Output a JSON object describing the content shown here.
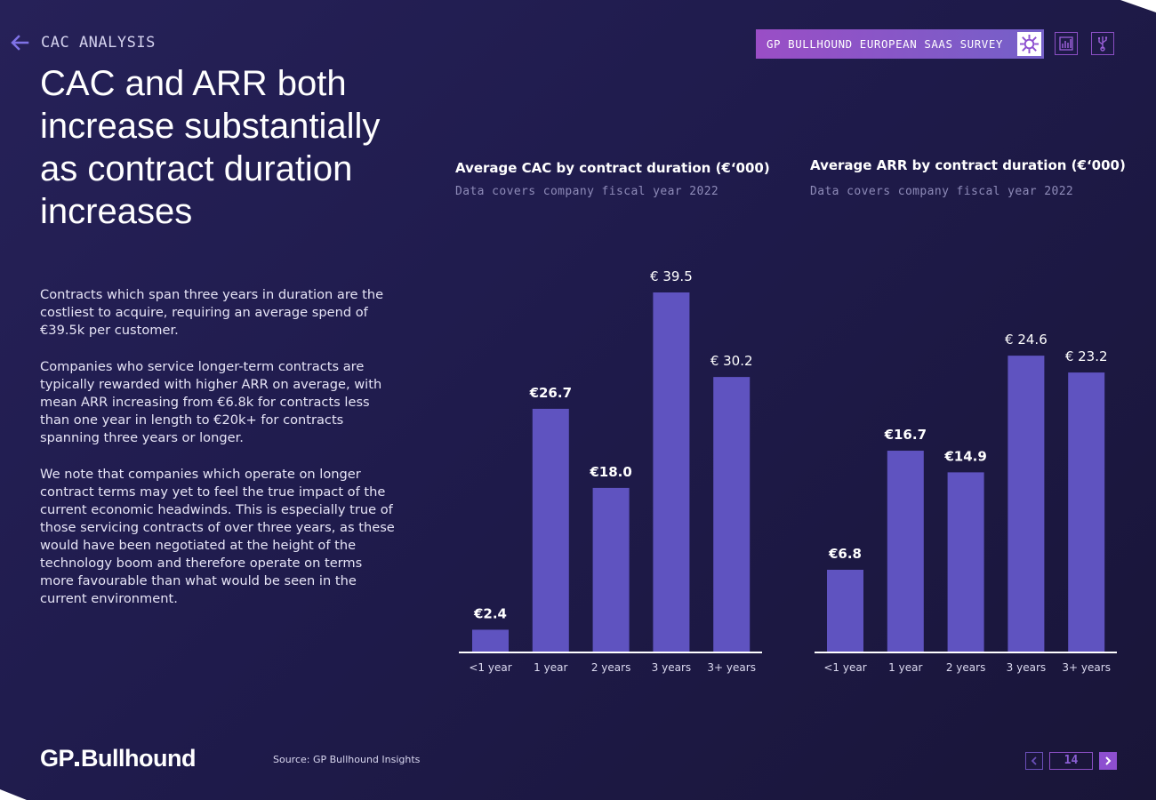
{
  "header": {
    "section_label": "CAC ANALYSIS",
    "survey_label": "GP BULLHOUND EUROPEAN SAAS SURVEY"
  },
  "headline": "CAC and ARR both increase substantially as contract duration increases",
  "paragraphs": [
    "Contracts which span three years in duration are the costliest to acquire, requiring an average spend of €39.5k per customer.",
    "Companies who service longer-term contracts are typically rewarded with higher ARR on average, with mean ARR increasing from €6.8k for contracts less than one year in length to €20k+ for contracts spanning three years or longer.",
    "We note that companies which operate on longer contract terms may yet to feel the true impact of the current economic headwinds. This is especially true of those servicing contracts of over three years, as these would have been negotiated at the height of the technology boom and therefore operate on terms more favourable than what would be seen in the current environment."
  ],
  "footer": {
    "logo_gp": "GP",
    "logo_bull": "Bullhound",
    "source": "Source: GP Bullhound Insights",
    "page_number": "14"
  },
  "colors": {
    "bar": "#5f53c0",
    "accent": "#8d4fd0"
  },
  "chart_data": [
    {
      "type": "bar",
      "title": "Average CAC by contract duration (€‘000)",
      "subtitle": "Data covers company fiscal year 2022",
      "categories": [
        "<1 year",
        "1 year",
        "2 years",
        "3 years",
        "3+ years"
      ],
      "values": [
        2.4,
        26.7,
        18.0,
        39.5,
        30.2
      ],
      "data_labels": [
        "€2.4",
        "€26.7",
        "€18.0",
        "€ 39.5",
        "€ 30.2"
      ],
      "bold_labels": [
        true,
        true,
        true,
        false,
        false
      ],
      "ylim": [
        0,
        39.5
      ],
      "xlabel": "",
      "ylabel": ""
    },
    {
      "type": "bar",
      "title": "Average ARR by contract duration (€‘000)",
      "subtitle": "Data covers company fiscal year 2022",
      "categories": [
        "<1 year",
        "1 year",
        "2 years",
        "3 years",
        "3+ years"
      ],
      "values": [
        6.8,
        16.7,
        14.9,
        24.6,
        23.2
      ],
      "data_labels": [
        "€6.8",
        "€16.7",
        "€14.9",
        "€ 24.6",
        "€ 23.2"
      ],
      "bold_labels": [
        true,
        true,
        true,
        false,
        false
      ],
      "ylim": [
        0,
        30.3
      ],
      "xlabel": "",
      "ylabel": ""
    }
  ]
}
